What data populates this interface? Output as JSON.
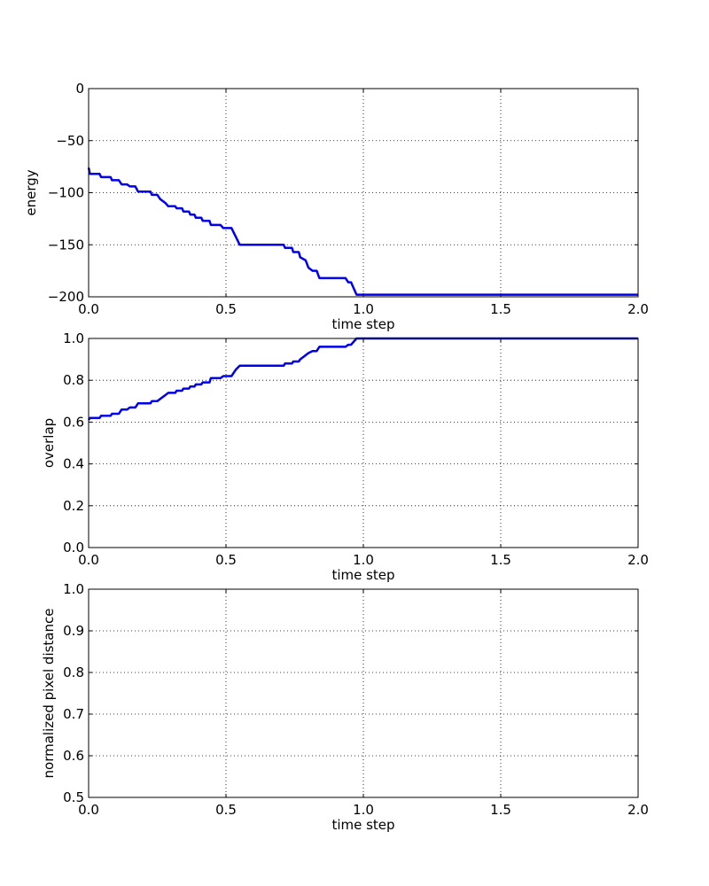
{
  "chart_data": [
    {
      "type": "line",
      "xlabel": "time step",
      "ylabel": "energy",
      "xlim": [
        0.0,
        2.0
      ],
      "ylim": [
        -200,
        0
      ],
      "xticks": [
        "0.0",
        "0.5",
        "1.0",
        "1.5",
        "2.0"
      ],
      "yticks": [
        "0",
        "−50",
        "−100",
        "−150",
        "−200"
      ],
      "grid": true,
      "series": [
        {
          "color": "#0000ee",
          "points": [
            [
              0.0,
              -76
            ],
            [
              0.005,
              -82
            ],
            [
              0.04,
              -82
            ],
            [
              0.045,
              -85
            ],
            [
              0.08,
              -85
            ],
            [
              0.085,
              -88
            ],
            [
              0.11,
              -88
            ],
            [
              0.12,
              -92
            ],
            [
              0.14,
              -92
            ],
            [
              0.15,
              -94
            ],
            [
              0.17,
              -94
            ],
            [
              0.18,
              -99
            ],
            [
              0.225,
              -99
            ],
            [
              0.23,
              -102
            ],
            [
              0.25,
              -102
            ],
            [
              0.26,
              -106
            ],
            [
              0.28,
              -110
            ],
            [
              0.29,
              -113
            ],
            [
              0.315,
              -113
            ],
            [
              0.32,
              -115
            ],
            [
              0.34,
              -115
            ],
            [
              0.345,
              -118
            ],
            [
              0.365,
              -118
            ],
            [
              0.37,
              -121
            ],
            [
              0.385,
              -121
            ],
            [
              0.39,
              -124
            ],
            [
              0.41,
              -124
            ],
            [
              0.415,
              -127
            ],
            [
              0.44,
              -127
            ],
            [
              0.445,
              -131
            ],
            [
              0.48,
              -131
            ],
            [
              0.49,
              -134
            ],
            [
              0.52,
              -134
            ],
            [
              0.535,
              -142
            ],
            [
              0.55,
              -150
            ],
            [
              0.71,
              -150
            ],
            [
              0.715,
              -153
            ],
            [
              0.74,
              -153
            ],
            [
              0.745,
              -157
            ],
            [
              0.765,
              -157
            ],
            [
              0.77,
              -162
            ],
            [
              0.79,
              -165
            ],
            [
              0.8,
              -172
            ],
            [
              0.815,
              -175
            ],
            [
              0.83,
              -175
            ],
            [
              0.84,
              -182
            ],
            [
              0.935,
              -182
            ],
            [
              0.945,
              -186
            ],
            [
              0.955,
              -186
            ],
            [
              0.975,
              -198
            ],
            [
              2.0,
              -198
            ]
          ]
        }
      ]
    },
    {
      "type": "line",
      "xlabel": "time step",
      "ylabel": "overlap",
      "xlim": [
        0.0,
        2.0
      ],
      "ylim": [
        0.0,
        1.0
      ],
      "xticks": [
        "0.0",
        "0.5",
        "1.0",
        "1.5",
        "2.0"
      ],
      "yticks": [
        "0.0",
        "0.2",
        "0.4",
        "0.6",
        "0.8",
        "1.0"
      ],
      "grid": true,
      "series": [
        {
          "color": "#0000ee",
          "points": [
            [
              0.0,
              0.61
            ],
            [
              0.005,
              0.62
            ],
            [
              0.04,
              0.62
            ],
            [
              0.045,
              0.63
            ],
            [
              0.08,
              0.63
            ],
            [
              0.085,
              0.64
            ],
            [
              0.11,
              0.64
            ],
            [
              0.12,
              0.66
            ],
            [
              0.14,
              0.66
            ],
            [
              0.15,
              0.67
            ],
            [
              0.17,
              0.67
            ],
            [
              0.18,
              0.69
            ],
            [
              0.225,
              0.69
            ],
            [
              0.23,
              0.7
            ],
            [
              0.25,
              0.7
            ],
            [
              0.26,
              0.71
            ],
            [
              0.28,
              0.73
            ],
            [
              0.29,
              0.74
            ],
            [
              0.315,
              0.74
            ],
            [
              0.32,
              0.75
            ],
            [
              0.34,
              0.75
            ],
            [
              0.345,
              0.76
            ],
            [
              0.365,
              0.76
            ],
            [
              0.37,
              0.77
            ],
            [
              0.385,
              0.77
            ],
            [
              0.39,
              0.78
            ],
            [
              0.41,
              0.78
            ],
            [
              0.415,
              0.79
            ],
            [
              0.44,
              0.79
            ],
            [
              0.445,
              0.81
            ],
            [
              0.48,
              0.81
            ],
            [
              0.49,
              0.82
            ],
            [
              0.52,
              0.82
            ],
            [
              0.535,
              0.85
            ],
            [
              0.55,
              0.87
            ],
            [
              0.71,
              0.87
            ],
            [
              0.715,
              0.88
            ],
            [
              0.74,
              0.88
            ],
            [
              0.745,
              0.89
            ],
            [
              0.765,
              0.89
            ],
            [
              0.77,
              0.9
            ],
            [
              0.79,
              0.92
            ],
            [
              0.8,
              0.93
            ],
            [
              0.815,
              0.94
            ],
            [
              0.83,
              0.94
            ],
            [
              0.84,
              0.96
            ],
            [
              0.935,
              0.96
            ],
            [
              0.945,
              0.97
            ],
            [
              0.955,
              0.97
            ],
            [
              0.975,
              1.0
            ],
            [
              2.0,
              1.0
            ]
          ]
        }
      ]
    },
    {
      "type": "line",
      "xlabel": "time step",
      "ylabel": "normalized pixel distance",
      "xlim": [
        0.0,
        2.0
      ],
      "ylim": [
        0.5,
        1.0
      ],
      "xticks": [
        "0.0",
        "0.5",
        "1.0",
        "1.5",
        "2.0"
      ],
      "yticks": [
        "0.5",
        "0.6",
        "0.7",
        "0.8",
        "0.9",
        "1.0"
      ],
      "grid": true,
      "series": []
    }
  ]
}
